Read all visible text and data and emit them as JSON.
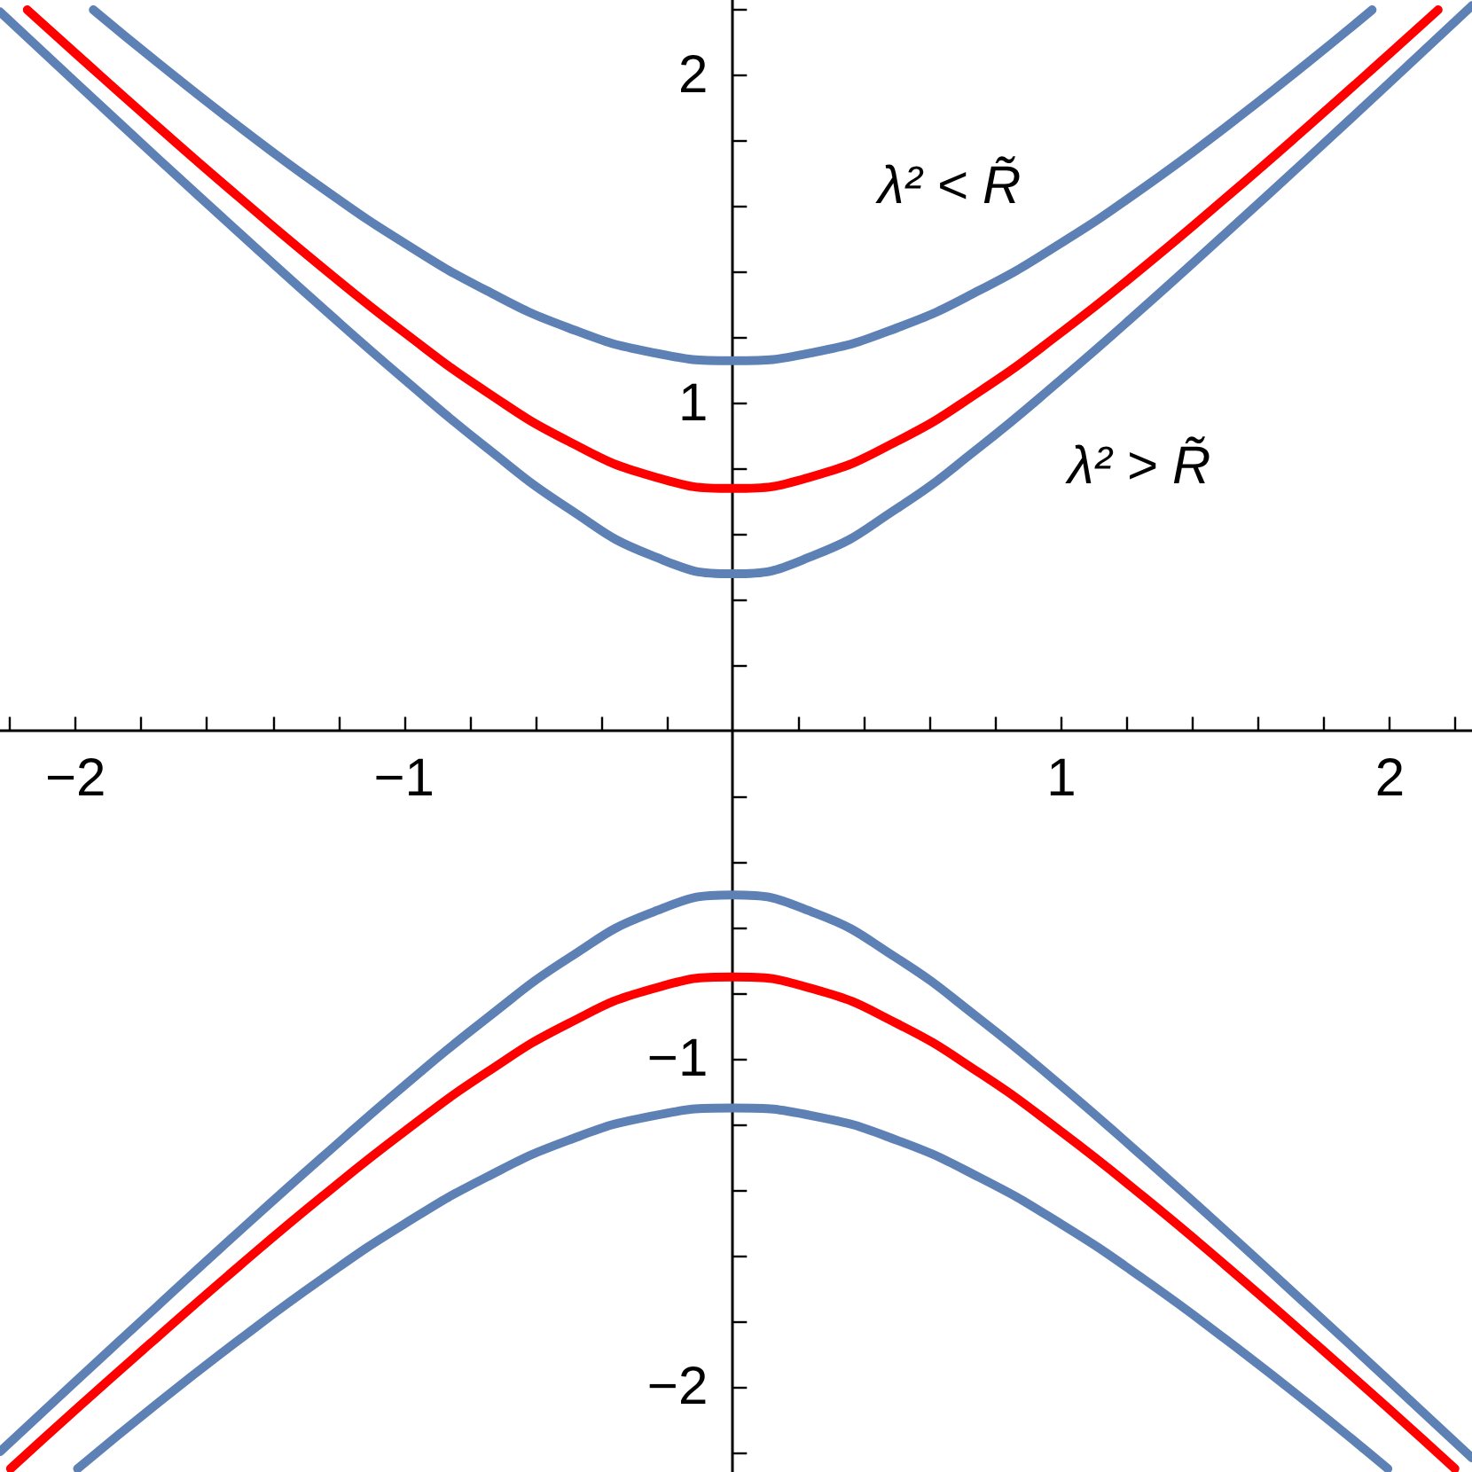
{
  "chart_data": {
    "type": "line",
    "marker": "none",
    "line_style": "solid",
    "xlim": [
      -2.23,
      2.25
    ],
    "ylim": [
      -2.26,
      2.23
    ],
    "xticks": [
      {
        "value": -2.2,
        "label": null
      },
      {
        "value": -2,
        "label": "−2"
      },
      {
        "value": -1.8,
        "label": null
      },
      {
        "value": -1.6,
        "label": null
      },
      {
        "value": -1.4,
        "label": null
      },
      {
        "value": -1.2,
        "label": null
      },
      {
        "value": -1,
        "label": "−1"
      },
      {
        "value": -0.8,
        "label": null
      },
      {
        "value": -0.6,
        "label": null
      },
      {
        "value": -0.4,
        "label": null
      },
      {
        "value": -0.2,
        "label": null
      },
      {
        "value": 0.2,
        "label": null
      },
      {
        "value": 0.4,
        "label": null
      },
      {
        "value": 0.6,
        "label": null
      },
      {
        "value": 0.8,
        "label": null
      },
      1,
      {
        "value": 1.2,
        "label": null
      },
      {
        "value": 1.4,
        "label": null
      },
      {
        "value": 1.6,
        "label": null
      },
      {
        "value": 1.8,
        "label": null
      },
      2,
      {
        "value": 2.2,
        "label": null
      }
    ],
    "yticks": [
      {
        "value": -2.2,
        "label": null
      },
      {
        "value": -2,
        "label": "−2"
      },
      {
        "value": -1.8,
        "label": null
      },
      {
        "value": -1.6,
        "label": null
      },
      {
        "value": -1.4,
        "label": null
      },
      {
        "value": -1.2,
        "label": null
      },
      {
        "value": -1,
        "label": "−1"
      },
      {
        "value": -0.8,
        "label": null
      },
      {
        "value": -0.6,
        "label": null
      },
      {
        "value": -0.4,
        "label": null
      },
      {
        "value": -0.2,
        "label": null
      },
      {
        "value": 0.2,
        "label": null
      },
      {
        "value": 0.4,
        "label": null
      },
      {
        "value": 0.6,
        "label": null
      },
      {
        "value": 0.8,
        "label": null
      },
      1,
      {
        "value": 1.2,
        "label": null
      },
      {
        "value": 1.4,
        "label": null
      },
      {
        "value": 1.6,
        "label": null
      },
      {
        "value": 1.8,
        "label": null
      },
      2,
      {
        "value": 2.2,
        "label": null
      }
    ],
    "annotations": [
      "λ² < R̃",
      "λ² > R̃"
    ],
    "series": [
      {
        "color": "#5e81b5",
        "x": [
          -1.946,
          -1.75,
          -1.5,
          -1.25,
          -1,
          -0.75,
          -0.5,
          -0.25,
          0,
          0.25,
          0.5,
          0.75,
          1,
          1.25,
          1.5,
          1.75,
          1.946
        ],
        "values": [
          2.2,
          2.039,
          1.842,
          1.657,
          1.489,
          1.344,
          1.23,
          1.156,
          1.13,
          1.156,
          1.23,
          1.344,
          1.489,
          1.657,
          1.842,
          2.039,
          2.2
        ]
      },
      {
        "color": "#ff0000",
        "x": [
          -2.147,
          -2,
          -1.75,
          -1.5,
          -1.25,
          -1,
          -0.75,
          -0.5,
          -0.25,
          0,
          0.25,
          0.5,
          0.75,
          1,
          1.25,
          1.5,
          1.75,
          2,
          2.147
        ],
        "values": [
          2.2,
          2.067,
          1.844,
          1.626,
          1.415,
          1.216,
          1.035,
          0.884,
          0.779,
          0.74,
          0.779,
          0.884,
          1.035,
          1.216,
          1.415,
          1.626,
          1.844,
          2.067,
          2.2
        ]
      },
      {
        "color": "#5e81b5",
        "x": [
          -2.23,
          -2,
          -1.75,
          -1.5,
          -1.25,
          -1,
          -0.75,
          -0.5,
          -0.25,
          0,
          0.25,
          0.5,
          0.75,
          1,
          1.25,
          1.5,
          1.75,
          2,
          2.25
        ],
        "values": [
          2.194,
          1.979,
          1.747,
          1.518,
          1.292,
          1.073,
          0.865,
          0.679,
          0.537,
          0.48,
          0.537,
          0.679,
          0.865,
          1.073,
          1.292,
          1.518,
          1.747,
          1.979,
          2.213
        ]
      },
      {
        "color": "#5e81b5",
        "x": [
          -2.23,
          -2,
          -1.75,
          -1.5,
          -1.25,
          -1,
          -0.75,
          -0.5,
          -0.25,
          0,
          0.25,
          0.5,
          0.75,
          1,
          1.25,
          1.5,
          1.75,
          2,
          2.25
        ],
        "values": [
          -2.198,
          -1.984,
          -1.753,
          -1.524,
          -1.3,
          -1.082,
          -0.877,
          -0.693,
          -0.555,
          -0.5,
          -0.555,
          -0.693,
          -0.877,
          -1.082,
          -1.3,
          -1.524,
          -1.753,
          -1.984,
          -2.217
        ]
      },
      {
        "color": "#ff0000",
        "x": [
          -2.198,
          -2,
          -1.75,
          -1.5,
          -1.25,
          -1,
          -0.75,
          -0.5,
          -0.25,
          0,
          0.25,
          0.5,
          0.75,
          1,
          1.25,
          1.5,
          1.75,
          2,
          2.198
        ],
        "values": [
          -2.25,
          -2.07,
          -1.848,
          -1.63,
          -1.42,
          -1.222,
          -1.042,
          -0.892,
          -0.788,
          -0.75,
          -0.788,
          -0.892,
          -1.042,
          -1.222,
          -1.42,
          -1.63,
          -1.848,
          -2.07,
          -2.25
        ]
      },
      {
        "color": "#5e81b5",
        "x": [
          -1.994,
          -1.75,
          -1.5,
          -1.25,
          -1,
          -0.75,
          -0.5,
          -0.25,
          0,
          0.25,
          0.5,
          0.75,
          1,
          1.25,
          1.5,
          1.75,
          1.994
        ],
        "values": [
          -2.25,
          -2.05,
          -1.855,
          -1.671,
          -1.504,
          -1.361,
          -1.248,
          -1.175,
          -1.15,
          -1.175,
          -1.248,
          -1.361,
          -1.504,
          -1.671,
          -1.855,
          -2.05,
          -2.25
        ]
      }
    ]
  }
}
